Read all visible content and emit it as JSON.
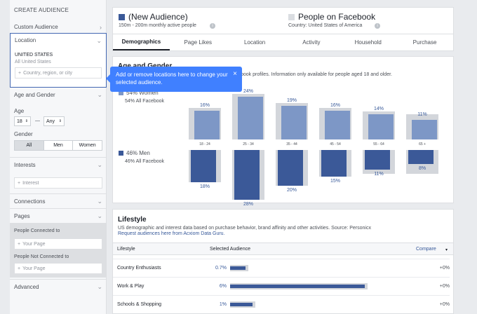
{
  "sidebar": {
    "header": "CREATE AUDIENCE",
    "custom_audience": "Custom Audience",
    "location": {
      "title": "Location",
      "current": "UNITED STATES",
      "current_sub": "All United States",
      "placeholder": "Country, region, or city"
    },
    "age_gender": {
      "title": "Age and Gender",
      "age_label": "Age",
      "age_from": "18",
      "age_sep": "—",
      "age_to": "Any",
      "gender_label": "Gender",
      "gender_options": [
        "All",
        "Men",
        "Women"
      ],
      "gender_selected": "All"
    },
    "interests": {
      "title": "Interests",
      "placeholder": "Interest"
    },
    "connections": "Connections",
    "pages": {
      "title": "Pages",
      "connected_label": "People Connected to",
      "connected_placeholder": "Your Page",
      "not_connected_label": "People Not Connected to",
      "not_connected_placeholder": "Your Page"
    },
    "advanced": "Advanced"
  },
  "tooltip": {
    "text": "Add or remove locations here to change your selected audience.",
    "close": "×"
  },
  "header": {
    "new_audience": "(New Audience)",
    "new_audience_sub": "150m - 200m monthly active people",
    "people_fb": "People on Facebook",
    "people_fb_sub": "Country: United States of America",
    "new_color": "#3b5998",
    "people_color": "#dadde1"
  },
  "tabs": [
    "Demographics",
    "Page Likes",
    "Location",
    "Activity",
    "Household",
    "Purchase"
  ],
  "active_tab": "Demographics",
  "age_gender_panel": {
    "title": "Age and Gender",
    "description": "book profiles. Information only available for people aged 18 and older.",
    "women_label": "54% Women",
    "women_sub": "54% All Facebook",
    "men_label": "46% Men",
    "men_sub": "46% All Facebook"
  },
  "chart_data": {
    "type": "bar",
    "categories": [
      "18 - 24",
      "25 - 34",
      "35 - 44",
      "45 - 54",
      "55 - 64",
      "65 +"
    ],
    "series": [
      {
        "name": "Women",
        "values": [
          16,
          24,
          19,
          16,
          14,
          11
        ],
        "color": "#7d97c6"
      },
      {
        "name": "Men",
        "values": [
          18,
          28,
          20,
          15,
          11,
          8
        ],
        "color": "#3b5998"
      }
    ],
    "value_suffix": "%"
  },
  "lifestyle": {
    "title": "Lifestyle",
    "description": "US demographic and interest data based on purchase behavior, brand affinity and other activities. Source: Personicx",
    "link": "Request audiences here from Acxiom Data Guru.",
    "col_lifestyle": "Lifestyle",
    "col_selected": "Selected Audience",
    "col_compare": "Compare",
    "rows": [
      {
        "name": "Country Enthusiasts",
        "pct": "0.7%",
        "value": 0.7,
        "compare": "+0%"
      },
      {
        "name": "Work & Play",
        "pct": "6%",
        "value": 6,
        "compare": "+0%"
      },
      {
        "name": "Schools & Shopping",
        "pct": "1%",
        "value": 1,
        "compare": "+0%"
      }
    ]
  }
}
